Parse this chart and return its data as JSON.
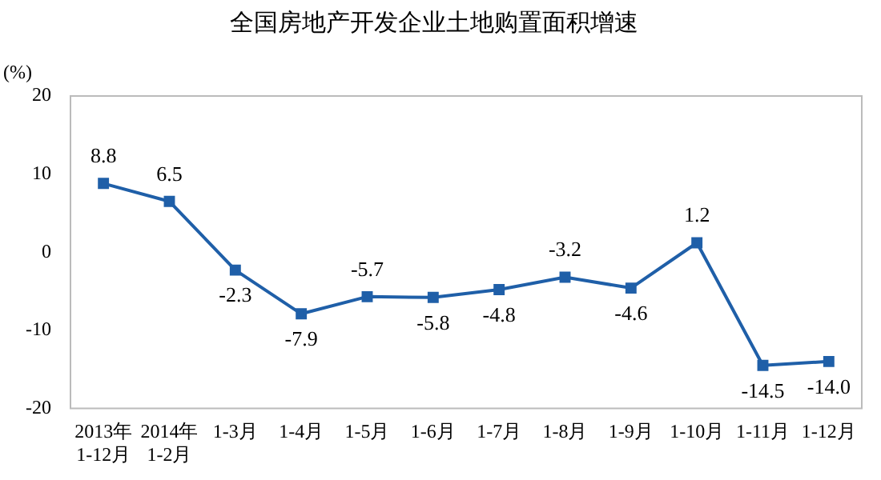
{
  "chart_data": {
    "type": "line",
    "title": "全国房地产开发企业土地购置面积增速",
    "ylabel": "(%)",
    "categories": [
      "2013年 1-12月",
      "2014年 1-2月",
      "1-3月",
      "1-4月",
      "1-5月",
      "1-6月",
      "1-7月",
      "1-8月",
      "1-9月",
      "1-10月",
      "1-11月",
      "1-12月"
    ],
    "series": [
      {
        "color": "#1f5fa8",
        "values": [
          8.8,
          6.5,
          -2.3,
          -7.9,
          -5.7,
          -5.8,
          -4.8,
          -3.2,
          -4.6,
          1.2,
          -14.5,
          -14.0
        ]
      }
    ],
    "value_labels": [
      "8.8",
      "6.5",
      "-2.3",
      "-7.9",
      "-5.7",
      "-5.8",
      "-4.8",
      "-3.2",
      "-4.6",
      "1.2",
      "-14.5",
      "-14.0"
    ],
    "ylim": [
      -20,
      20
    ],
    "yticks": [
      -20,
      -10,
      0,
      10,
      20
    ],
    "grid": false,
    "legend": false,
    "marker": "square",
    "line_style": "solid"
  }
}
